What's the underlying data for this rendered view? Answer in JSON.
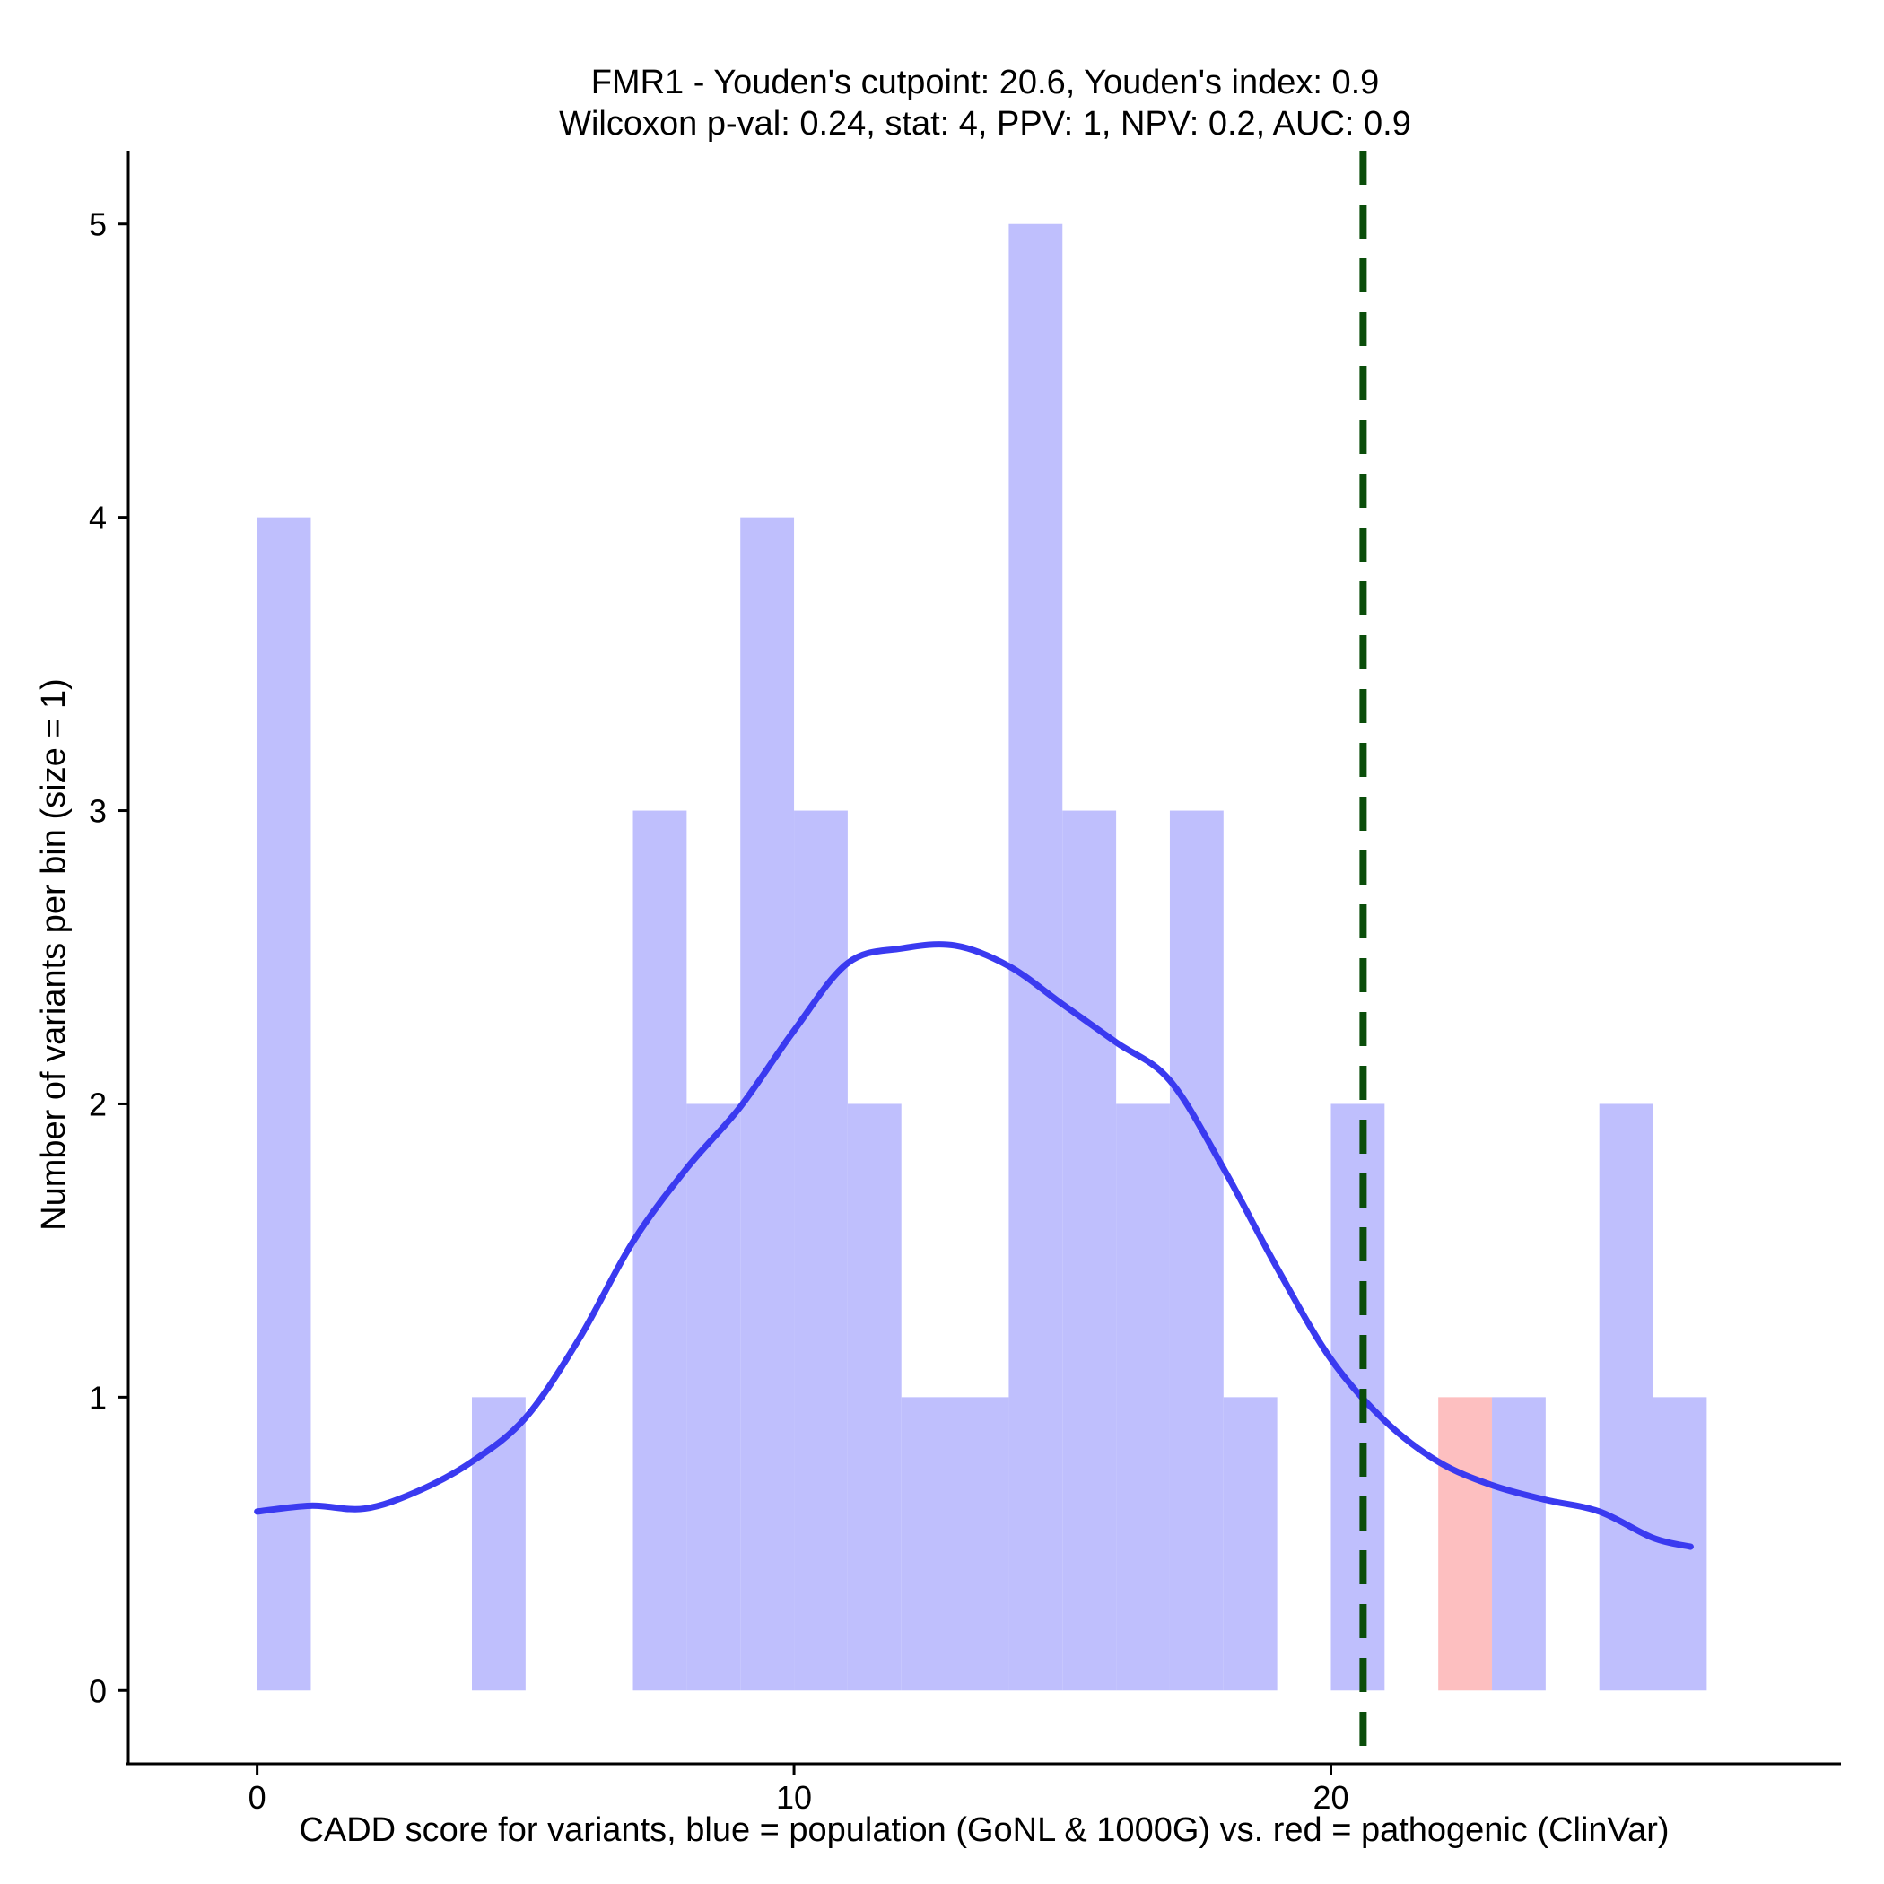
{
  "chart_data": {
    "type": "bar",
    "title_line1": "FMR1 - Youden's cutpoint: 20.6, Youden's index: 0.9",
    "title_line2": "Wilcoxon p-val: 0.24, stat: 4, PPV: 1, NPV: 0.2, AUC: 0.9",
    "xlabel": "CADD score for variants, blue = population (GoNL & 1000G) vs. red = pathogenic (ClinVar)",
    "ylabel": "Number of variants per bin (size = 1)",
    "xlim": [
      -2.4,
      29.5
    ],
    "ylim": [
      -0.25,
      5.25
    ],
    "x_ticks": [
      0,
      10,
      20
    ],
    "y_ticks": [
      0,
      1,
      2,
      3,
      4,
      5
    ],
    "bin_width": 1,
    "cutpoint": 20.6,
    "series": [
      {
        "name": "population (GoNL & 1000G)",
        "color": "#bfbffd",
        "bins": [
          {
            "start": 0,
            "count": 4
          },
          {
            "start": 4,
            "count": 1
          },
          {
            "start": 7,
            "count": 3
          },
          {
            "start": 8,
            "count": 2
          },
          {
            "start": 9,
            "count": 4
          },
          {
            "start": 10,
            "count": 3
          },
          {
            "start": 11,
            "count": 2
          },
          {
            "start": 12,
            "count": 1
          },
          {
            "start": 13,
            "count": 1
          },
          {
            "start": 14,
            "count": 5
          },
          {
            "start": 15,
            "count": 3
          },
          {
            "start": 16,
            "count": 2
          },
          {
            "start": 17,
            "count": 3
          },
          {
            "start": 18,
            "count": 1
          },
          {
            "start": 20,
            "count": 2
          },
          {
            "start": 23,
            "count": 1
          },
          {
            "start": 25,
            "count": 2
          },
          {
            "start": 26,
            "count": 1
          }
        ]
      },
      {
        "name": "pathogenic (ClinVar)",
        "color": "#fdbfc0",
        "bins": [
          {
            "start": 22,
            "count": 1
          }
        ]
      }
    ],
    "density_curve": {
      "name": "population density",
      "color": "#3a3af0",
      "x": [
        0,
        1,
        2,
        3,
        4,
        5,
        6,
        7,
        8,
        9,
        10,
        11,
        12,
        13,
        14,
        15,
        16,
        17,
        18,
        19,
        20,
        21,
        22,
        23,
        24,
        25,
        26,
        26.7
      ],
      "y": [
        0.61,
        0.63,
        0.62,
        0.68,
        0.78,
        0.93,
        1.2,
        1.53,
        1.78,
        1.99,
        2.25,
        2.48,
        2.53,
        2.54,
        2.47,
        2.34,
        2.21,
        2.08,
        1.78,
        1.44,
        1.13,
        0.92,
        0.78,
        0.7,
        0.65,
        0.61,
        0.52,
        0.49
      ]
    },
    "cutpoint_line_color": "#0a4d0a"
  }
}
